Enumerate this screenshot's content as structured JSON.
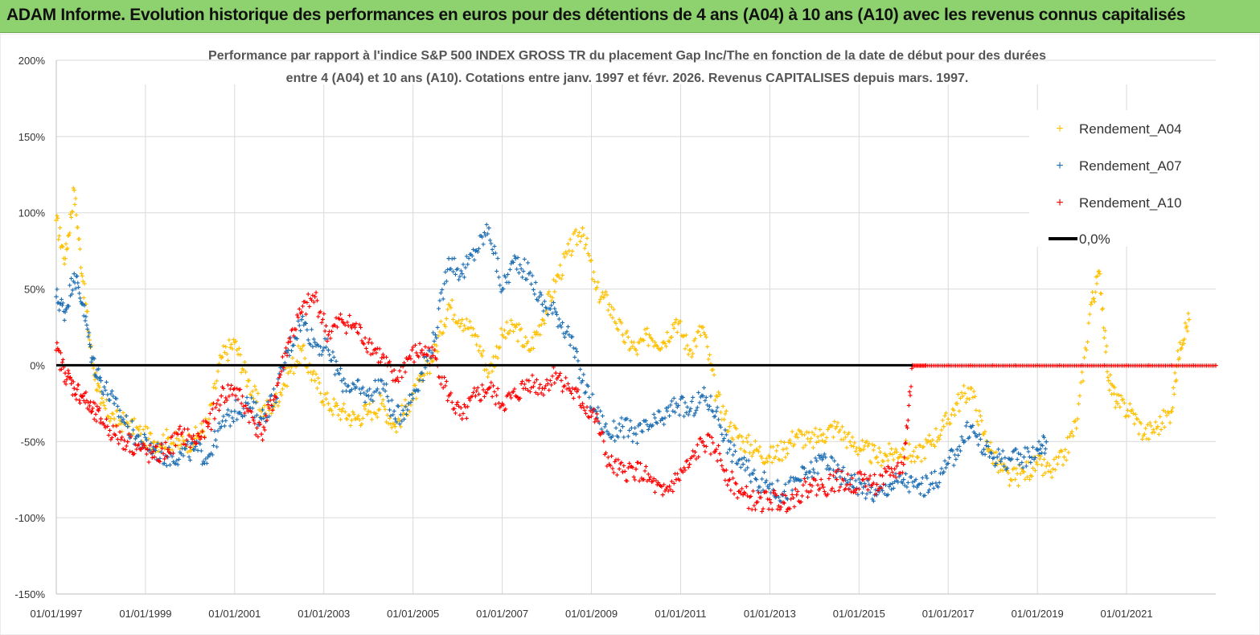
{
  "header": {
    "title": "ADAM Informe. Evolution historique des performances en euros pour des détentions de 4 ans (A04) à 10 ans (A10) avec les revenus connus capitalisés"
  },
  "chart_data": {
    "type": "scatter",
    "title_line1": "Performance par rapport à l'indice S&P 500 INDEX GROSS TR  du placement Gap Inc/The en fonction de la date de début pour des durées",
    "title_line2": "entre 4 (A04) et 10 ans (A10).  Cotations entre janv. 1997 et févr. 2026. Revenus  CAPITALISES depuis mars. 1997.",
    "x_range": [
      1997.0,
      2023.0
    ],
    "ylim": [
      -150,
      200
    ],
    "y_ticks": [
      "200%",
      "150%",
      "100%",
      "50%",
      "0%",
      "-50%",
      "-100%",
      "-150%"
    ],
    "y_tick_values": [
      200,
      150,
      100,
      50,
      0,
      -50,
      -100,
      -150
    ],
    "x_ticks": [
      "01/01/1997",
      "01/01/1999",
      "01/01/2001",
      "01/01/2003",
      "01/01/2005",
      "01/01/2007",
      "01/01/2009",
      "01/01/2011",
      "01/01/2013",
      "01/01/2015",
      "01/01/2017",
      "01/01/2019",
      "01/01/2021"
    ],
    "x_tick_values": [
      1997,
      1999,
      2001,
      2003,
      2005,
      2007,
      2009,
      2011,
      2013,
      2015,
      2017,
      2019,
      2021
    ],
    "series": [
      {
        "name": "Rendement_A04",
        "color": "#ffc000",
        "points": [
          [
            1997.0,
            95
          ],
          [
            1997.2,
            70
          ],
          [
            1997.4,
            115
          ],
          [
            1997.6,
            55
          ],
          [
            1997.8,
            5
          ],
          [
            1998.0,
            -25
          ],
          [
            1998.3,
            -35
          ],
          [
            1998.6,
            -38
          ],
          [
            1998.9,
            -45
          ],
          [
            1999.2,
            -50
          ],
          [
            1999.5,
            -48
          ],
          [
            1999.8,
            -52
          ],
          [
            2000.1,
            -48
          ],
          [
            2000.4,
            -38
          ],
          [
            2000.7,
            5
          ],
          [
            2001.0,
            15
          ],
          [
            2001.3,
            -10
          ],
          [
            2001.6,
            -30
          ],
          [
            2001.9,
            -25
          ],
          [
            2002.2,
            -5
          ],
          [
            2002.5,
            10
          ],
          [
            2002.8,
            -10
          ],
          [
            2003.1,
            -25
          ],
          [
            2003.4,
            -30
          ],
          [
            2003.7,
            -35
          ],
          [
            2004.0,
            -30
          ],
          [
            2004.3,
            -25
          ],
          [
            2004.6,
            -40
          ],
          [
            2004.9,
            -25
          ],
          [
            2005.2,
            -10
          ],
          [
            2005.5,
            10
          ],
          [
            2005.8,
            40
          ],
          [
            2006.1,
            30
          ],
          [
            2006.4,
            20
          ],
          [
            2006.7,
            -5
          ],
          [
            2007.0,
            20
          ],
          [
            2007.3,
            25
          ],
          [
            2007.6,
            10
          ],
          [
            2007.9,
            30
          ],
          [
            2008.2,
            55
          ],
          [
            2008.5,
            75
          ],
          [
            2008.8,
            90
          ],
          [
            2009.1,
            50
          ],
          [
            2009.4,
            40
          ],
          [
            2009.7,
            20
          ],
          [
            2010.0,
            10
          ],
          [
            2010.3,
            20
          ],
          [
            2010.6,
            15
          ],
          [
            2010.9,
            30
          ],
          [
            2011.2,
            10
          ],
          [
            2011.5,
            25
          ],
          [
            2011.8,
            -20
          ],
          [
            2012.1,
            -40
          ],
          [
            2012.4,
            -50
          ],
          [
            2012.7,
            -55
          ],
          [
            2013.0,
            -60
          ],
          [
            2013.3,
            -55
          ],
          [
            2013.6,
            -45
          ],
          [
            2013.9,
            -50
          ],
          [
            2014.2,
            -45
          ],
          [
            2014.5,
            -40
          ],
          [
            2014.8,
            -50
          ],
          [
            2015.1,
            -55
          ],
          [
            2015.4,
            -60
          ],
          [
            2015.7,
            -58
          ],
          [
            2016.0,
            -55
          ],
          [
            2016.3,
            -60
          ],
          [
            2016.6,
            -50
          ],
          [
            2016.9,
            -40
          ],
          [
            2017.2,
            -25
          ],
          [
            2017.5,
            -15
          ],
          [
            2017.8,
            -45
          ],
          [
            2018.1,
            -65
          ],
          [
            2018.4,
            -75
          ],
          [
            2018.7,
            -70
          ],
          [
            2019.0,
            -65
          ],
          [
            2019.3,
            -70
          ],
          [
            2019.6,
            -60
          ],
          [
            2019.9,
            -35
          ],
          [
            2020.2,
            40
          ],
          [
            2020.4,
            60
          ],
          [
            2020.6,
            -10
          ],
          [
            2020.8,
            -25
          ],
          [
            2021.1,
            -30
          ],
          [
            2021.4,
            -45
          ],
          [
            2021.7,
            -40
          ],
          [
            2022.0,
            -30
          ],
          [
            2022.2,
            15
          ],
          [
            2022.4,
            30
          ]
        ]
      },
      {
        "name": "Rendement_A07",
        "color": "#1f6fb4",
        "points": [
          [
            1997.0,
            45
          ],
          [
            1997.2,
            35
          ],
          [
            1997.4,
            60
          ],
          [
            1997.6,
            40
          ],
          [
            1997.8,
            5
          ],
          [
            1998.0,
            -10
          ],
          [
            1998.3,
            -25
          ],
          [
            1998.6,
            -40
          ],
          [
            1998.9,
            -50
          ],
          [
            1999.2,
            -55
          ],
          [
            1999.5,
            -60
          ],
          [
            1999.8,
            -58
          ],
          [
            2000.1,
            -55
          ],
          [
            2000.4,
            -60
          ],
          [
            2000.7,
            -40
          ],
          [
            2001.0,
            -30
          ],
          [
            2001.3,
            -25
          ],
          [
            2001.6,
            -35
          ],
          [
            2001.9,
            -20
          ],
          [
            2002.2,
            10
          ],
          [
            2002.5,
            30
          ],
          [
            2002.8,
            15
          ],
          [
            2003.1,
            10
          ],
          [
            2003.4,
            -10
          ],
          [
            2003.7,
            -15
          ],
          [
            2004.0,
            -20
          ],
          [
            2004.3,
            -10
          ],
          [
            2004.6,
            -35
          ],
          [
            2004.9,
            -25
          ],
          [
            2005.2,
            -5
          ],
          [
            2005.5,
            20
          ],
          [
            2005.8,
            70
          ],
          [
            2006.1,
            60
          ],
          [
            2006.4,
            75
          ],
          [
            2006.7,
            90
          ],
          [
            2007.0,
            50
          ],
          [
            2007.3,
            70
          ],
          [
            2007.6,
            60
          ],
          [
            2007.9,
            40
          ],
          [
            2008.2,
            35
          ],
          [
            2008.5,
            20
          ],
          [
            2008.8,
            -10
          ],
          [
            2009.1,
            -30
          ],
          [
            2009.4,
            -45
          ],
          [
            2009.7,
            -40
          ],
          [
            2010.0,
            -45
          ],
          [
            2010.3,
            -40
          ],
          [
            2010.6,
            -35
          ],
          [
            2010.9,
            -25
          ],
          [
            2011.2,
            -30
          ],
          [
            2011.5,
            -20
          ],
          [
            2011.8,
            -30
          ],
          [
            2012.1,
            -55
          ],
          [
            2012.4,
            -65
          ],
          [
            2012.7,
            -75
          ],
          [
            2013.0,
            -78
          ],
          [
            2013.3,
            -85
          ],
          [
            2013.6,
            -75
          ],
          [
            2013.9,
            -70
          ],
          [
            2014.2,
            -60
          ],
          [
            2014.5,
            -70
          ],
          [
            2014.8,
            -75
          ],
          [
            2015.1,
            -80
          ],
          [
            2015.4,
            -85
          ],
          [
            2015.7,
            -78
          ],
          [
            2016.0,
            -75
          ],
          [
            2016.3,
            -80
          ],
          [
            2016.6,
            -78
          ],
          [
            2016.9,
            -70
          ],
          [
            2017.2,
            -55
          ],
          [
            2017.5,
            -40
          ],
          [
            2017.8,
            -55
          ],
          [
            2018.1,
            -60
          ],
          [
            2018.4,
            -62
          ],
          [
            2018.7,
            -60
          ],
          [
            2019.0,
            -55
          ],
          [
            2019.2,
            -50
          ]
        ]
      },
      {
        "name": "Rendement_A10",
        "color": "#ff0000",
        "points": [
          [
            1997.0,
            10
          ],
          [
            1997.2,
            -5
          ],
          [
            1997.4,
            -15
          ],
          [
            1997.6,
            -20
          ],
          [
            1997.8,
            -30
          ],
          [
            1998.0,
            -35
          ],
          [
            1998.3,
            -45
          ],
          [
            1998.6,
            -50
          ],
          [
            1998.9,
            -55
          ],
          [
            1999.2,
            -60
          ],
          [
            1999.5,
            -55
          ],
          [
            1999.8,
            -45
          ],
          [
            2000.1,
            -50
          ],
          [
            2000.4,
            -40
          ],
          [
            2000.7,
            -20
          ],
          [
            2001.0,
            -15
          ],
          [
            2001.3,
            -30
          ],
          [
            2001.6,
            -45
          ],
          [
            2001.9,
            -20
          ],
          [
            2002.2,
            15
          ],
          [
            2002.5,
            35
          ],
          [
            2002.8,
            45
          ],
          [
            2003.1,
            20
          ],
          [
            2003.4,
            30
          ],
          [
            2003.7,
            25
          ],
          [
            2004.0,
            15
          ],
          [
            2004.3,
            5
          ],
          [
            2004.6,
            -10
          ],
          [
            2004.9,
            5
          ],
          [
            2005.2,
            10
          ],
          [
            2005.5,
            5
          ],
          [
            2005.8,
            -20
          ],
          [
            2006.1,
            -35
          ],
          [
            2006.4,
            -20
          ],
          [
            2006.7,
            -15
          ],
          [
            2007.0,
            -25
          ],
          [
            2007.3,
            -20
          ],
          [
            2007.6,
            -10
          ],
          [
            2007.9,
            -15
          ],
          [
            2008.2,
            -5
          ],
          [
            2008.5,
            -15
          ],
          [
            2008.8,
            -25
          ],
          [
            2009.1,
            -35
          ],
          [
            2009.4,
            -65
          ],
          [
            2009.7,
            -70
          ],
          [
            2010.0,
            -68
          ],
          [
            2010.3,
            -75
          ],
          [
            2010.6,
            -85
          ],
          [
            2010.9,
            -75
          ],
          [
            2011.2,
            -65
          ],
          [
            2011.5,
            -50
          ],
          [
            2011.8,
            -55
          ],
          [
            2012.1,
            -75
          ],
          [
            2012.4,
            -85
          ],
          [
            2012.7,
            -90
          ],
          [
            2013.0,
            -88
          ],
          [
            2013.3,
            -90
          ],
          [
            2013.6,
            -85
          ],
          [
            2013.9,
            -78
          ],
          [
            2014.2,
            -80
          ],
          [
            2014.5,
            -75
          ],
          [
            2014.8,
            -78
          ],
          [
            2015.1,
            -75
          ],
          [
            2015.4,
            -78
          ],
          [
            2015.7,
            -72
          ],
          [
            2016.0,
            -65
          ],
          [
            2016.2,
            0
          ],
          [
            2016.5,
            0
          ],
          [
            2017.0,
            0
          ],
          [
            2017.5,
            0
          ],
          [
            2018.0,
            0
          ],
          [
            2018.5,
            0
          ],
          [
            2019.0,
            0
          ],
          [
            2019.5,
            0
          ],
          [
            2020.0,
            0
          ],
          [
            2020.5,
            0
          ],
          [
            2021.0,
            0
          ],
          [
            2021.5,
            0
          ],
          [
            2022.0,
            0
          ],
          [
            2022.5,
            0
          ],
          [
            2023.0,
            0
          ]
        ]
      }
    ],
    "zero_line": {
      "name": "0,0%",
      "color": "#000000",
      "value": 0
    },
    "legend": [
      "Rendement_A04",
      "Rendement_A07",
      "Rendement_A10",
      "0,0%"
    ]
  }
}
